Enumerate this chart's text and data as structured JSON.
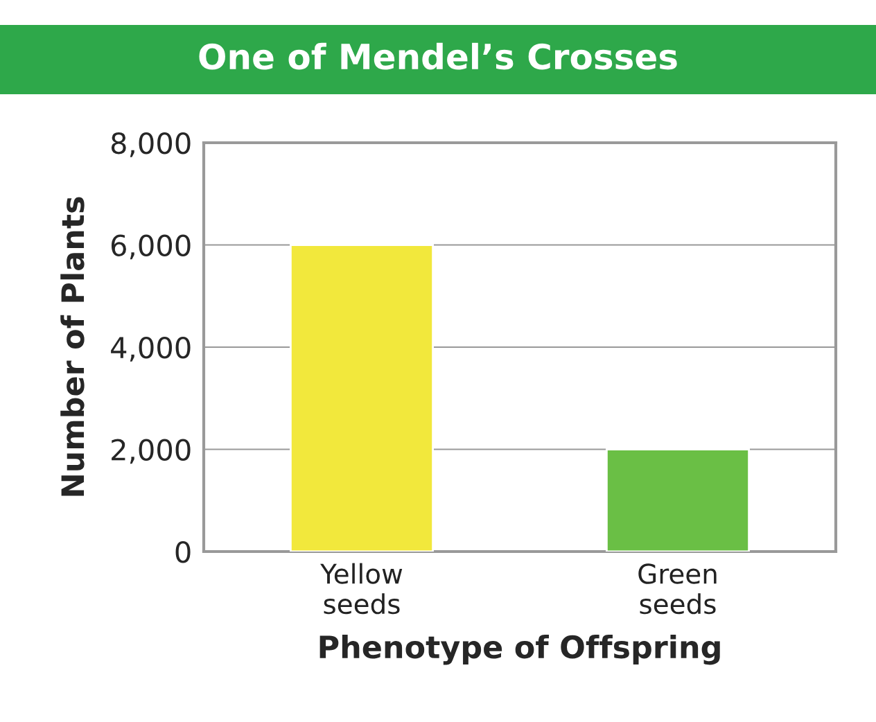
{
  "chart_data": {
    "type": "bar",
    "title": "One of Mendel’s Crosses",
    "xlabel": "Phenotype of Offspring",
    "ylabel": "Number of Plants",
    "categories": [
      "Yellow\nseeds",
      "Green\nseeds"
    ],
    "values": [
      6000,
      2000
    ],
    "colors": [
      "#f2e83c",
      "#6abf45"
    ],
    "ylim": [
      0,
      8000
    ],
    "yticks": [
      0,
      {
        "value": 2000,
        "label": "2,000"
      },
      {
        "value": 4000,
        "label": "4,000"
      },
      {
        "value": 6000,
        "label": "6,000"
      },
      {
        "value": 8000,
        "label": "8,000"
      }
    ],
    "grid": "y",
    "legend": false
  }
}
